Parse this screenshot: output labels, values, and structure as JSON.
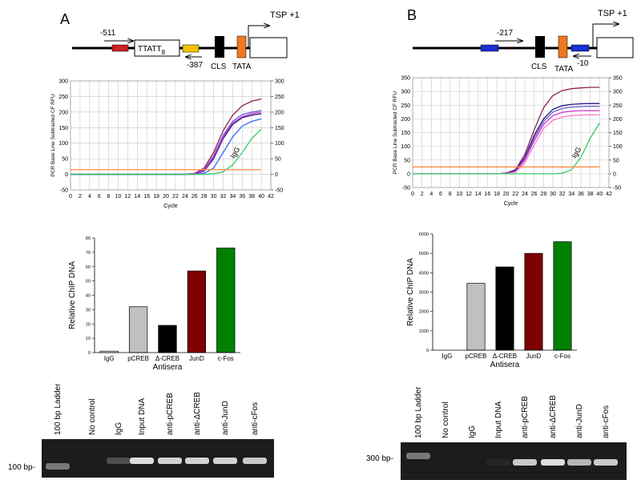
{
  "chart_data": [
    {
      "type": "line",
      "x": [
        0,
        2,
        4,
        6,
        8,
        10,
        12,
        14,
        16,
        18,
        20,
        22,
        24,
        26,
        28,
        30,
        32,
        34,
        36,
        38,
        40
      ],
      "series": [
        {
          "color": "#8b2252",
          "values": [
            0,
            0,
            0,
            0,
            0,
            0,
            0,
            0,
            0,
            0,
            0,
            0,
            0,
            3,
            20,
            70,
            140,
            190,
            220,
            235,
            242
          ]
        },
        {
          "color": "#6a5acd",
          "values": [
            0,
            0,
            0,
            0,
            0,
            0,
            0,
            0,
            0,
            0,
            0,
            0,
            0,
            2,
            15,
            60,
            125,
            170,
            192,
            200,
            205
          ]
        },
        {
          "color": "#1a1a80",
          "values": [
            0,
            0,
            0,
            0,
            0,
            0,
            0,
            0,
            0,
            0,
            0,
            0,
            0,
            1,
            10,
            50,
            115,
            160,
            182,
            190,
            195
          ]
        },
        {
          "color": "#cc33cc",
          "values": [
            0,
            0,
            0,
            0,
            0,
            0,
            0,
            0,
            0,
            0,
            0,
            0,
            0,
            2,
            12,
            55,
            120,
            165,
            185,
            195,
            200
          ]
        },
        {
          "color": "#3366ff",
          "values": [
            0,
            0,
            0,
            0,
            0,
            0,
            0,
            0,
            0,
            0,
            0,
            0,
            0,
            0,
            3,
            20,
            70,
            120,
            155,
            170,
            178
          ]
        },
        {
          "color": "#33cc66",
          "values": [
            0,
            0,
            0,
            0,
            0,
            0,
            0,
            0,
            0,
            0,
            0,
            0,
            0,
            0,
            0,
            2,
            8,
            30,
            70,
            115,
            145
          ]
        },
        {
          "color": "#ff8c42",
          "values": [
            15,
            15,
            15,
            15,
            15,
            15,
            15,
            15,
            15,
            15,
            15,
            15,
            15,
            15,
            15,
            15,
            15,
            15,
            15,
            15,
            15
          ]
        }
      ],
      "xlim": [
        0,
        42
      ],
      "xticks": [
        0,
        2,
        4,
        6,
        8,
        10,
        12,
        14,
        16,
        18,
        20,
        22,
        24,
        26,
        28,
        30,
        32,
        34,
        36,
        38,
        40,
        42
      ],
      "ylim": [
        -50,
        300
      ],
      "yticks": [
        -50,
        0,
        50,
        100,
        150,
        200,
        250,
        300
      ],
      "y2lim": [
        -50,
        300
      ],
      "y2ticks": [
        -50,
        0,
        50,
        100,
        150,
        200,
        250,
        300
      ],
      "ylabel": "PCR Base Line Subtracted CF RFU",
      "xlabel": "Cycle",
      "annotation": "IgG",
      "grid": true
    },
    {
      "type": "bar",
      "categories": [
        "IgG",
        "pCREB",
        "Δ-CREB",
        "JunD",
        "c-Fos"
      ],
      "values": [
        1,
        32,
        19,
        57,
        73
      ],
      "colors": [
        "#ffffff",
        "#c0c0c0",
        "#000000",
        "#7f0000",
        "#008000"
      ],
      "ylim": [
        0,
        80
      ],
      "yticks": [
        0,
        10,
        20,
        30,
        40,
        50,
        60,
        70,
        80
      ],
      "ylabel": "Relative ChIP DNA",
      "xlabel": "Antisera"
    },
    {
      "type": "line",
      "x": [
        0,
        2,
        4,
        6,
        8,
        10,
        12,
        14,
        16,
        18,
        20,
        22,
        24,
        26,
        28,
        30,
        32,
        34,
        36,
        38,
        40
      ],
      "series": [
        {
          "color": "#8b2252",
          "values": [
            0,
            0,
            0,
            0,
            0,
            0,
            0,
            0,
            0,
            0,
            2,
            15,
            70,
            160,
            240,
            285,
            303,
            310,
            313,
            315,
            315
          ]
        },
        {
          "color": "#1a1a80",
          "values": [
            0,
            0,
            0,
            0,
            0,
            0,
            0,
            0,
            0,
            0,
            2,
            12,
            60,
            140,
            200,
            235,
            248,
            253,
            255,
            256,
            256
          ]
        },
        {
          "color": "#6a5acd",
          "values": [
            0,
            0,
            0,
            0,
            0,
            0,
            0,
            0,
            0,
            0,
            0,
            10,
            55,
            130,
            190,
            225,
            238,
            243,
            245,
            246,
            246
          ]
        },
        {
          "color": "#cc33cc",
          "values": [
            0,
            0,
            0,
            0,
            0,
            0,
            0,
            0,
            0,
            0,
            0,
            8,
            50,
            120,
            180,
            212,
            224,
            228,
            230,
            230,
            230
          ]
        },
        {
          "color": "#ff77cc",
          "values": [
            0,
            0,
            0,
            0,
            0,
            0,
            0,
            0,
            0,
            0,
            0,
            6,
            40,
            105,
            165,
            195,
            207,
            212,
            214,
            215,
            215
          ]
        },
        {
          "color": "#33cc66",
          "values": [
            0,
            0,
            0,
            0,
            0,
            0,
            0,
            0,
            0,
            0,
            0,
            0,
            0,
            0,
            0,
            0,
            2,
            15,
            60,
            130,
            185
          ]
        },
        {
          "color": "#ff8c42",
          "values": [
            25,
            25,
            25,
            25,
            25,
            25,
            25,
            25,
            25,
            25,
            25,
            25,
            25,
            25,
            25,
            25,
            25,
            25,
            25,
            25,
            25
          ]
        }
      ],
      "xlim": [
        0,
        42
      ],
      "xticks": [
        0,
        2,
        4,
        6,
        8,
        10,
        12,
        14,
        16,
        18,
        20,
        22,
        24,
        26,
        28,
        30,
        32,
        34,
        36,
        38,
        40,
        42
      ],
      "ylim": [
        -50,
        350
      ],
      "yticks": [
        -50,
        0,
        50,
        100,
        150,
        200,
        250,
        300,
        350
      ],
      "y2lim": [
        -50,
        350
      ],
      "y2ticks": [
        -50,
        0,
        50,
        100,
        150,
        200,
        250,
        300,
        350
      ],
      "ylabel": "PCR Base Line Subtracted CF RFU",
      "xlabel": "Cycle",
      "annotation": "IgG",
      "grid": true
    },
    {
      "type": "bar",
      "categories": [
        "IgG",
        "pCREB",
        "Δ-CREB",
        "JunD",
        "c-Fos"
      ],
      "values": [
        0,
        3450,
        4300,
        5000,
        5600
      ],
      "colors": [
        "#ffffff",
        "#c0c0c0",
        "#000000",
        "#7f0000",
        "#008000"
      ],
      "ylim": [
        0,
        6000
      ],
      "yticks": [
        0,
        1000,
        2000,
        3000,
        4000,
        5000,
        6000
      ],
      "ylabel": "Relative ChIP DNA",
      "xlabel": "Antisera"
    }
  ],
  "panels": [
    {
      "label": "A",
      "promoter": {
        "upstream": "-511",
        "repeat": "TTATT",
        "repeat_count": "8",
        "primer": "-387",
        "cls": "CLS",
        "tata": "TATA",
        "tsp": "TSP +1"
      },
      "gel": {
        "lanes": [
          "100 bp Ladder",
          "No control",
          "IgG",
          "Input DNA",
          "anti-pCREB",
          "anti-ΔCREB",
          "anti-JunD",
          "anti-cFos"
        ],
        "marker": "100 bp-"
      }
    },
    {
      "label": "B",
      "promoter": {
        "upstream": "-217",
        "cls": "CLS",
        "tata": "TATA",
        "primer": "-10",
        "tsp": "TSP +1"
      },
      "gel": {
        "lanes": [
          "100 bp Ladder",
          "No control",
          "IgG",
          "Input DNA",
          "anti-pCREB",
          "anti-ΔCREB",
          "anti-JunD",
          "anti-cFos"
        ],
        "marker": "300 bp-"
      }
    }
  ]
}
